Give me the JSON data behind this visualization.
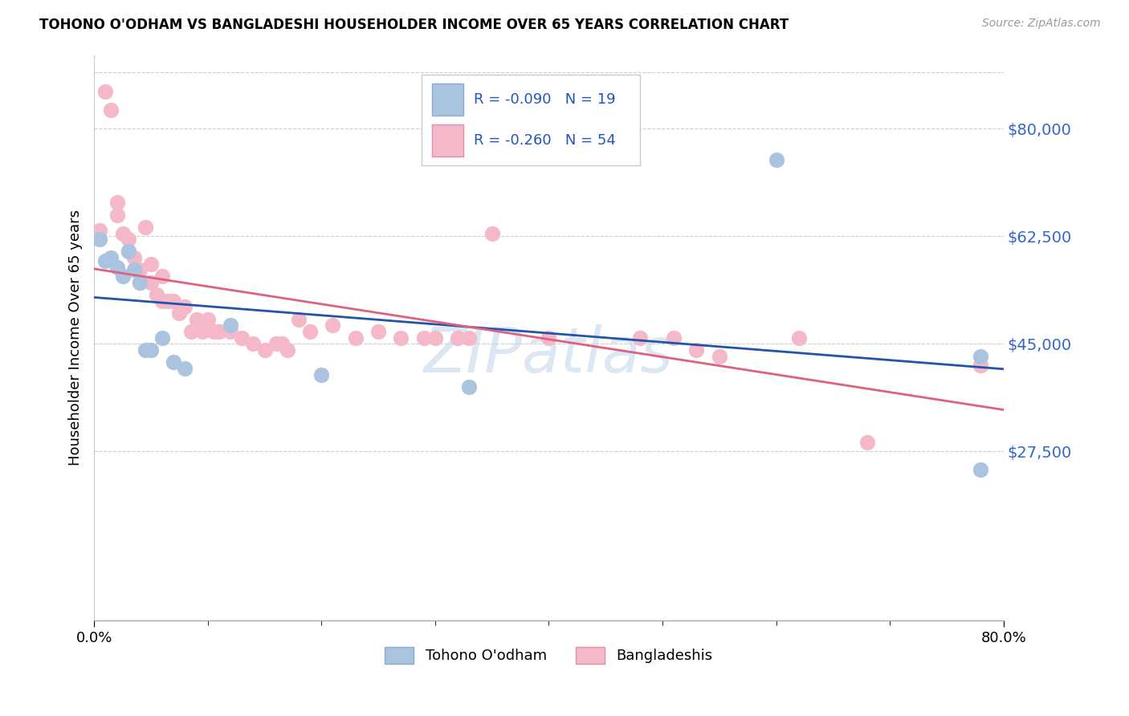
{
  "title": "TOHONO O'ODHAM VS BANGLADESHI HOUSEHOLDER INCOME OVER 65 YEARS CORRELATION CHART",
  "source": "Source: ZipAtlas.com",
  "ylabel": "Householder Income Over 65 years",
  "xlim": [
    0.0,
    0.8
  ],
  "ylim": [
    0,
    92000
  ],
  "y_ticks": [
    27500,
    45000,
    62500,
    80000
  ],
  "y_tick_labels": [
    "$27,500",
    "$45,000",
    "$62,500",
    "$80,000"
  ],
  "x_ticks": [
    0.0,
    0.8
  ],
  "x_tick_labels": [
    "0.0%",
    "80.0%"
  ],
  "legend_label1": "Tohono O'odham",
  "legend_label2": "Bangladeshis",
  "R1": -0.09,
  "N1": 19,
  "R2": -0.26,
  "N2": 54,
  "color1": "#aac4e0",
  "color2": "#f4b8c8",
  "line_color1": "#2255aa",
  "line_color2": "#e06080",
  "watermark": "ZIPatlas",
  "tohono_x": [
    0.005,
    0.01,
    0.015,
    0.02,
    0.025,
    0.03,
    0.035,
    0.04,
    0.045,
    0.05,
    0.06,
    0.07,
    0.08,
    0.12,
    0.2,
    0.33,
    0.6,
    0.78,
    0.78
  ],
  "tohono_y": [
    62000,
    58500,
    59000,
    57500,
    56000,
    60000,
    57000,
    55000,
    44000,
    44000,
    46000,
    42000,
    41000,
    48000,
    40000,
    38000,
    75000,
    43000,
    24500
  ],
  "bangla_x": [
    0.005,
    0.01,
    0.015,
    0.02,
    0.02,
    0.025,
    0.03,
    0.03,
    0.035,
    0.04,
    0.04,
    0.045,
    0.05,
    0.05,
    0.055,
    0.06,
    0.06,
    0.065,
    0.07,
    0.075,
    0.08,
    0.085,
    0.09,
    0.095,
    0.1,
    0.105,
    0.11,
    0.12,
    0.13,
    0.14,
    0.15,
    0.16,
    0.165,
    0.17,
    0.18,
    0.19,
    0.21,
    0.23,
    0.25,
    0.27,
    0.29,
    0.3,
    0.32,
    0.33,
    0.35,
    0.4,
    0.48,
    0.51,
    0.53,
    0.55,
    0.62,
    0.68,
    0.78,
    0.78
  ],
  "bangla_y": [
    63500,
    86000,
    83000,
    66000,
    68000,
    63000,
    62000,
    60000,
    59000,
    57000,
    55000,
    64000,
    58000,
    55000,
    53000,
    56000,
    52000,
    52000,
    52000,
    50000,
    51000,
    47000,
    49000,
    47000,
    49000,
    47000,
    47000,
    47000,
    46000,
    45000,
    44000,
    45000,
    45000,
    44000,
    49000,
    47000,
    48000,
    46000,
    47000,
    46000,
    46000,
    46000,
    46000,
    46000,
    63000,
    46000,
    46000,
    46000,
    44000,
    43000,
    46000,
    29000,
    41500,
    41500
  ]
}
